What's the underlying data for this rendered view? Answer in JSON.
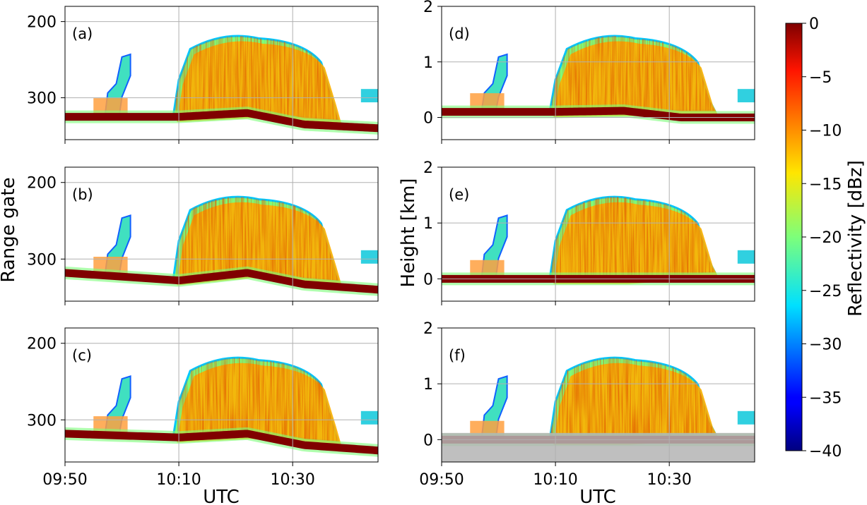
{
  "chart_data": {
    "type": "heatmap",
    "xlabel": "UTC",
    "x_ticks": [
      "09:50",
      "10:10",
      "10:30"
    ],
    "x_range": [
      "09:50",
      "10:45"
    ],
    "left_ylabel": "Range gate",
    "left_yticks": [
      200,
      300
    ],
    "left_ylim": [
      355,
      180
    ],
    "right_ylabel": "Height [km]",
    "right_yticks": [
      0,
      1,
      2
    ],
    "right_ylim": [
      -0.4,
      2.0
    ],
    "grid": true,
    "colorbar": {
      "label": "Reflectivity [dBz]",
      "range": [
        -40,
        0
      ],
      "ticks": [
        0,
        -5,
        -10,
        -15,
        -20,
        -25,
        -30,
        -35,
        -40
      ],
      "colormap": "jet"
    },
    "panels": [
      {
        "id": "a",
        "label": "(a)",
        "axis": "range_gate",
        "surface": [
          {
            "t": "09:50",
            "v": 325
          },
          {
            "t": "10:10",
            "v": 325
          },
          {
            "t": "10:22",
            "v": 320
          },
          {
            "t": "10:32",
            "v": 335
          },
          {
            "t": "10:45",
            "v": 340
          }
        ]
      },
      {
        "id": "b",
        "label": "(b)",
        "axis": "range_gate",
        "surface": [
          {
            "t": "09:50",
            "v": 318
          },
          {
            "t": "10:10",
            "v": 328
          },
          {
            "t": "10:22",
            "v": 318
          },
          {
            "t": "10:32",
            "v": 333
          },
          {
            "t": "10:45",
            "v": 340
          }
        ]
      },
      {
        "id": "c",
        "label": "(c)",
        "axis": "range_gate",
        "surface": [
          {
            "t": "09:50",
            "v": 318
          },
          {
            "t": "10:10",
            "v": 323
          },
          {
            "t": "10:22",
            "v": 318
          },
          {
            "t": "10:32",
            "v": 333
          },
          {
            "t": "10:45",
            "v": 340
          }
        ]
      },
      {
        "id": "d",
        "label": "(d)",
        "axis": "height_km",
        "surface": [
          {
            "t": "09:50",
            "v": 0.1
          },
          {
            "t": "10:10",
            "v": 0.1
          },
          {
            "t": "10:22",
            "v": 0.12
          },
          {
            "t": "10:32",
            "v": 0.0
          },
          {
            "t": "10:45",
            "v": 0.0
          }
        ]
      },
      {
        "id": "e",
        "label": "(e)",
        "axis": "height_km",
        "surface": [
          {
            "t": "09:50",
            "v": 0.0
          },
          {
            "t": "10:45",
            "v": 0.0
          }
        ]
      },
      {
        "id": "f",
        "label": "(f)",
        "axis": "height_km",
        "masked_below_km": 0.12,
        "surface": [
          {
            "t": "09:50",
            "v": 0.0
          },
          {
            "t": "10:45",
            "v": 0.0
          }
        ]
      }
    ]
  }
}
